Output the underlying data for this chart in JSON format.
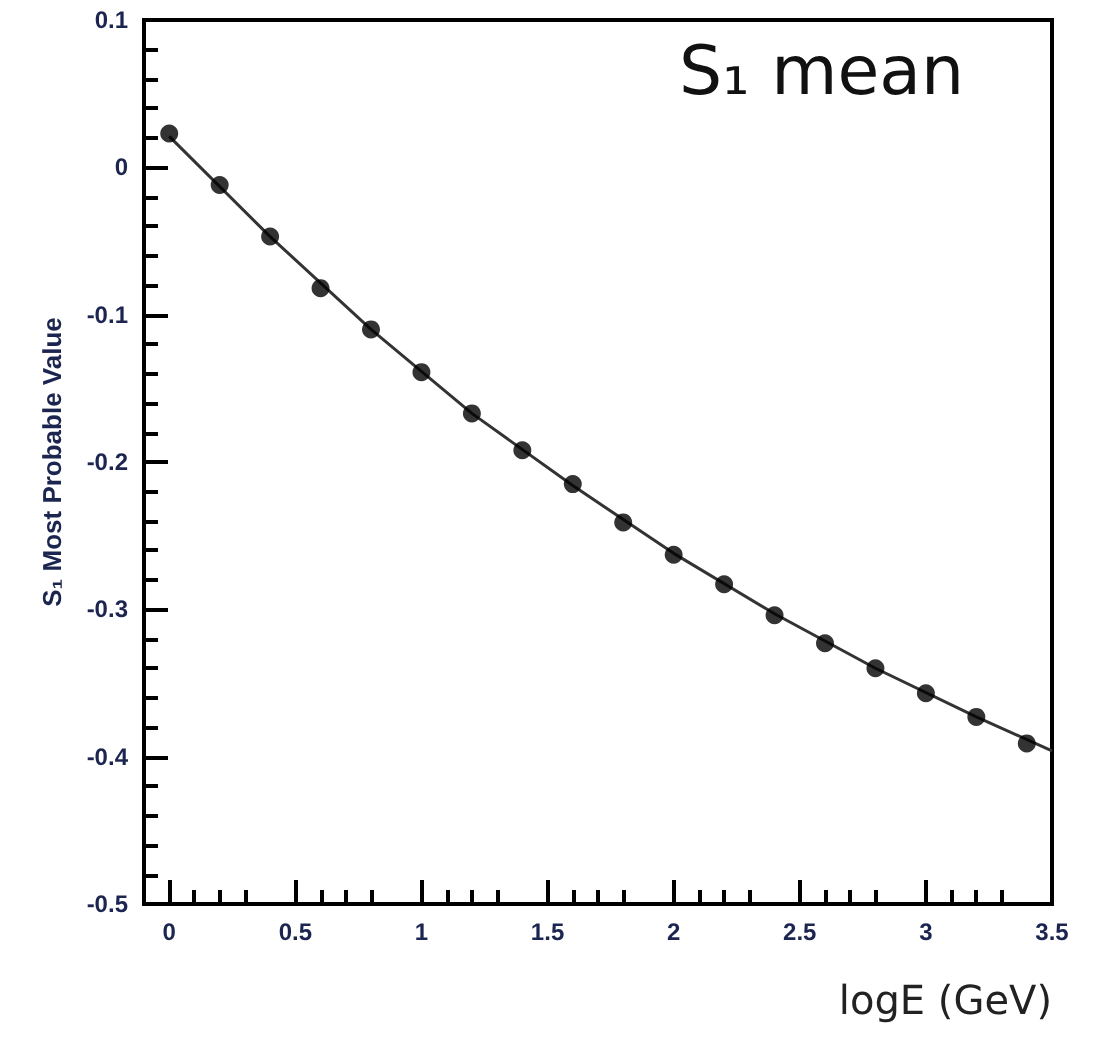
{
  "chart_data": {
    "type": "scatter",
    "title": "S₁ mean",
    "xlabel": "logE (GeV)",
    "ylabel": "S₁ Most Probable Value",
    "xlim": [
      -0.1,
      3.5
    ],
    "xticks": [
      0,
      0.5,
      1,
      1.5,
      2,
      2.5,
      3,
      3.5
    ],
    "ylim": [
      -0.5,
      0.1
    ],
    "yticks": [
      -0.5,
      -0.4,
      -0.3,
      -0.2,
      -0.1,
      0,
      0.1
    ],
    "grid": false,
    "marker": "circle",
    "series": [
      {
        "color": "#000000",
        "x": [
          0,
          0.2,
          0.4,
          0.6,
          0.8,
          1.0,
          1.2,
          1.4,
          1.6,
          1.8,
          2.0,
          2.2,
          2.4,
          2.6,
          2.8,
          3.0,
          3.2,
          3.4
        ],
        "values": [
          0.023,
          -0.012,
          -0.047,
          -0.082,
          -0.11,
          -0.139,
          -0.167,
          -0.192,
          -0.215,
          -0.241,
          -0.263,
          -0.283,
          -0.304,
          -0.323,
          -0.34,
          -0.357,
          -0.373,
          -0.391
        ]
      },
      {
        "type": "line",
        "color": "#333333",
        "line_style": "solid",
        "marker": "none",
        "x": [
          0,
          0.4,
          0.8,
          1.2,
          1.6,
          2.0,
          2.4,
          2.8,
          3.2,
          3.5
        ],
        "values": [
          0.021,
          -0.047,
          -0.11,
          -0.167,
          -0.216,
          -0.262,
          -0.303,
          -0.34,
          -0.373,
          -0.396
        ]
      }
    ]
  }
}
